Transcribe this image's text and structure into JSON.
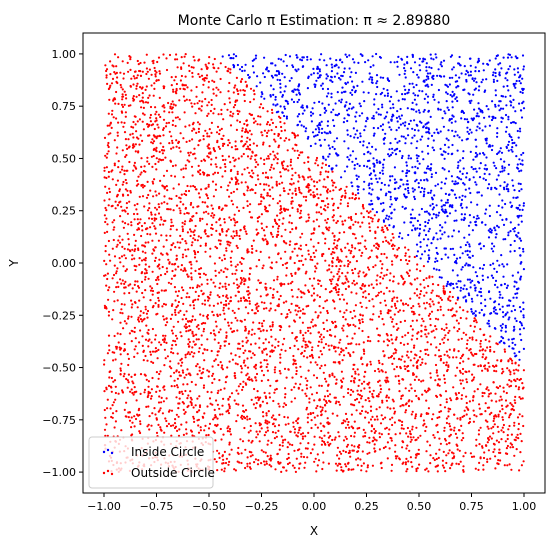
{
  "chart_data": {
    "type": "scatter",
    "title": "Monte Carlo π Estimation: π ≈ 2.89880",
    "xlabel": "X",
    "ylabel": "Y",
    "xlim": [
      -1.1,
      1.1
    ],
    "ylim": [
      -1.1,
      1.1
    ],
    "xticks": [
      "−1.00",
      "−0.75",
      "−0.50",
      "−0.25",
      "0.00",
      "0.25",
      "0.50",
      "0.75",
      "1.00"
    ],
    "xtick_values": [
      -1.0,
      -0.75,
      -0.5,
      -0.25,
      0.0,
      0.25,
      0.5,
      0.75,
      1.0
    ],
    "yticks": [
      "−1.00",
      "−0.75",
      "−0.50",
      "−0.25",
      "0.00",
      "0.25",
      "0.50",
      "0.75",
      "1.00"
    ],
    "ytick_values": [
      -1.0,
      -0.75,
      -0.5,
      -0.25,
      0.0,
      0.25,
      0.5,
      0.75,
      1.0
    ],
    "grid": false,
    "legend_position": "lower-left",
    "series": [
      {
        "name": "Inside Circle",
        "color": "#0000ff",
        "marker": "dot"
      },
      {
        "name": "Outside Circle",
        "color": "#ff0000",
        "marker": "dot"
      }
    ],
    "region": {
      "domain": "square [-1,1] x [-1,1]",
      "boundary_line": [
        [
          -0.45,
          1.0
        ],
        [
          0.95,
          -0.45
        ]
      ]
    }
  }
}
